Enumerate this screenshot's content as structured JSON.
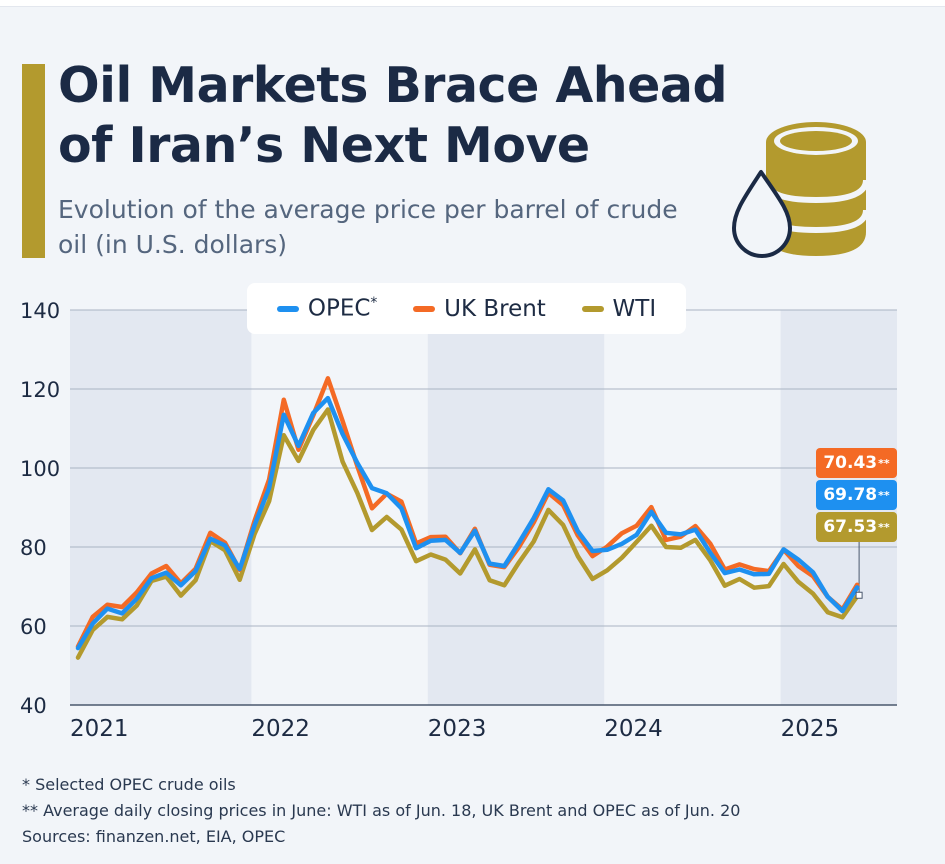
{
  "title": "Oil Markets Brace Ahead of Iran’s Next Move",
  "subtitle": "Evolution of the average price per barrel of crude oil (in U.S. dollars)",
  "icon": "oil-barrel-drop-icon",
  "colors": {
    "accent": "#b39a2e",
    "opec": "#1e90f0",
    "brent": "#f46a25",
    "wti": "#b39a2e"
  },
  "legend": {
    "opec_label": "OPEC",
    "opec_marker": "*",
    "brent_label": "UK Brent",
    "wti_label": "WTI"
  },
  "callouts": {
    "brent": {
      "value": "70.43",
      "marker": "**"
    },
    "opec": {
      "value": "69.78",
      "marker": "**"
    },
    "wti": {
      "value": "67.53",
      "marker": "**"
    }
  },
  "footnotes": {
    "note1": "*  Selected OPEC crude oils",
    "note2": "** Average daily closing prices in June: WTI as of Jun. 18, UK Brent and OPEC as of Jun. 20",
    "sources": "Sources: finanzen.net, EIA, OPEC"
  },
  "chart_data": {
    "type": "line",
    "title": "Oil Markets Brace Ahead of Iran’s Next Move",
    "subtitle": "Evolution of the average price per barrel of crude oil (in U.S. dollars)",
    "xlabel": "",
    "ylabel": "",
    "ylim": [
      40,
      140
    ],
    "yticks": [
      40,
      60,
      80,
      100,
      120,
      140
    ],
    "xtick_labels": [
      "2021",
      "2022",
      "2023",
      "2024",
      "2025"
    ],
    "x": [
      "2021-01",
      "2021-02",
      "2021-03",
      "2021-04",
      "2021-05",
      "2021-06",
      "2021-07",
      "2021-08",
      "2021-09",
      "2021-10",
      "2021-11",
      "2021-12",
      "2022-01",
      "2022-02",
      "2022-03",
      "2022-04",
      "2022-05",
      "2022-06",
      "2022-07",
      "2022-08",
      "2022-09",
      "2022-10",
      "2022-11",
      "2022-12",
      "2023-01",
      "2023-02",
      "2023-03",
      "2023-04",
      "2023-05",
      "2023-06",
      "2023-07",
      "2023-08",
      "2023-09",
      "2023-10",
      "2023-11",
      "2023-12",
      "2024-01",
      "2024-02",
      "2024-03",
      "2024-04",
      "2024-05",
      "2024-06",
      "2024-07",
      "2024-08",
      "2024-09",
      "2024-10",
      "2024-11",
      "2024-12",
      "2025-01",
      "2025-02",
      "2025-03",
      "2025-04",
      "2025-05",
      "2025-06"
    ],
    "series": [
      {
        "name": "OPEC*",
        "values": [
          54.4,
          60.6,
          64.4,
          63.2,
          66.9,
          72.1,
          73.5,
          70.3,
          73.9,
          82.1,
          80.4,
          74.4,
          85.4,
          94.9,
          113.5,
          105.6,
          113.9,
          117.7,
          108.6,
          101.3,
          94.9,
          93.6,
          89.8,
          79.7,
          81.6,
          81.8,
          78.5,
          84.1,
          75.8,
          75.2,
          81.1,
          87.3,
          94.6,
          91.8,
          84.0,
          79.0,
          79.3,
          80.8,
          83.1,
          88.9,
          83.6,
          83.2,
          84.4,
          78.6,
          73.4,
          74.3,
          73.1,
          73.2,
          79.4,
          76.8,
          73.6,
          67.4,
          63.8,
          69.78
        ]
      },
      {
        "name": "UK Brent",
        "values": [
          54.8,
          62.3,
          65.4,
          64.8,
          68.5,
          73.3,
          75.2,
          70.8,
          74.5,
          83.6,
          81.1,
          74.2,
          86.5,
          97.1,
          117.3,
          104.6,
          113.3,
          122.7,
          111.9,
          100.5,
          89.8,
          93.5,
          91.5,
          80.9,
          82.5,
          82.6,
          78.4,
          84.6,
          75.5,
          74.9,
          80.0,
          86.2,
          93.7,
          90.6,
          82.9,
          77.7,
          80.1,
          83.5,
          85.4,
          90.1,
          81.8,
          82.6,
          85.3,
          80.9,
          74.3,
          75.6,
          74.4,
          73.9,
          79.3,
          75.2,
          72.6,
          67.4,
          64.2,
          70.43
        ]
      },
      {
        "name": "WTI",
        "values": [
          52.0,
          59.0,
          62.3,
          61.7,
          65.2,
          71.4,
          72.5,
          67.7,
          71.6,
          81.5,
          79.2,
          71.7,
          83.2,
          91.6,
          108.3,
          101.8,
          109.6,
          114.8,
          101.6,
          93.7,
          84.3,
          87.6,
          84.4,
          76.4,
          78.1,
          76.8,
          73.3,
          79.4,
          71.6,
          70.3,
          76.1,
          81.4,
          89.4,
          85.6,
          77.7,
          71.9,
          74.1,
          77.3,
          81.3,
          85.4,
          80.0,
          79.8,
          81.8,
          76.7,
          70.2,
          71.9,
          69.7,
          70.1,
          75.7,
          71.2,
          68.2,
          63.5,
          62.2,
          67.53
        ]
      }
    ],
    "grid": true,
    "legend_position": "top-center"
  }
}
